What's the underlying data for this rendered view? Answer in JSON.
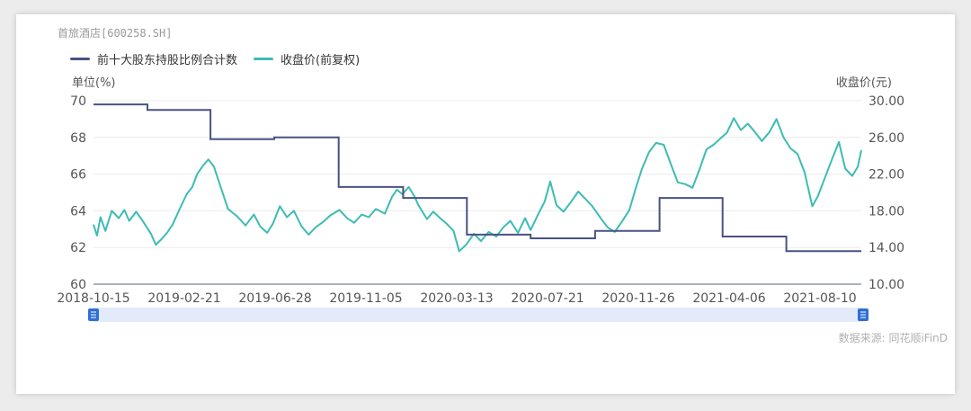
{
  "stock_title": "首旅酒店[600258.SH]",
  "source": "数据来源: 同花顺iFinD",
  "colors": {
    "holding": "#4a5282",
    "price": "#3cbcb3",
    "grid": "#ececec",
    "slider": "#e3ebfa",
    "handle": "#2f6fd6"
  },
  "chart_data": {
    "type": "line",
    "x_tick_labels": [
      "2018-10-15",
      "2019-02-21",
      "2019-06-28",
      "2019-11-05",
      "2020-03-13",
      "2020-07-21",
      "2020-11-26",
      "2021-04-06",
      "2021-08-10"
    ],
    "left_axis": {
      "label": "单位(%)",
      "ticks": [
        "70",
        "68",
        "66",
        "64",
        "62",
        "60"
      ],
      "range": [
        60,
        70
      ]
    },
    "right_axis": {
      "label": "收盘价(元)",
      "ticks": [
        "30.00",
        "26.00",
        "22.00",
        "18.00",
        "14.00",
        "10.00"
      ],
      "range": [
        10,
        30
      ]
    },
    "x_range": [
      "2018-10-15",
      "2021-10-15"
    ],
    "series": [
      {
        "name": "前十大股东持股比例合计数",
        "axis": "left",
        "style": "step",
        "points": [
          [
            "2018-10-15",
            69.8
          ],
          [
            "2018-12-31",
            69.5
          ],
          [
            "2019-03-31",
            67.9
          ],
          [
            "2019-06-30",
            68.0
          ],
          [
            "2019-09-30",
            65.3
          ],
          [
            "2019-12-31",
            64.7
          ],
          [
            "2020-03-31",
            62.7
          ],
          [
            "2020-06-30",
            62.5
          ],
          [
            "2020-09-30",
            62.9
          ],
          [
            "2020-12-31",
            64.7
          ],
          [
            "2021-03-31",
            62.6
          ],
          [
            "2021-06-30",
            61.8
          ],
          [
            "2021-10-15",
            61.8
          ]
        ]
      },
      {
        "name": "收盘价(前复权)",
        "axis": "right",
        "style": "line",
        "points": [
          [
            "2018-10-15",
            16.5
          ],
          [
            "2018-10-20",
            15.3
          ],
          [
            "2018-10-25",
            17.3
          ],
          [
            "2018-11-01",
            15.8
          ],
          [
            "2018-11-10",
            18.0
          ],
          [
            "2018-11-20",
            17.2
          ],
          [
            "2018-11-28",
            18.1
          ],
          [
            "2018-12-05",
            16.9
          ],
          [
            "2018-12-15",
            17.9
          ],
          [
            "2018-12-25",
            16.8
          ],
          [
            "2019-01-05",
            15.5
          ],
          [
            "2019-01-12",
            14.3
          ],
          [
            "2019-01-20",
            14.9
          ],
          [
            "2019-01-28",
            15.6
          ],
          [
            "2019-02-05",
            16.5
          ],
          [
            "2019-02-15",
            18.2
          ],
          [
            "2019-02-25",
            19.8
          ],
          [
            "2019-03-05",
            20.6
          ],
          [
            "2019-03-12",
            22.0
          ],
          [
            "2019-03-20",
            22.9
          ],
          [
            "2019-03-28",
            23.6
          ],
          [
            "2019-04-05",
            22.8
          ],
          [
            "2019-04-15",
            20.5
          ],
          [
            "2019-04-25",
            18.2
          ],
          [
            "2019-05-08",
            17.4
          ],
          [
            "2019-05-20",
            16.4
          ],
          [
            "2019-06-01",
            17.6
          ],
          [
            "2019-06-10",
            16.3
          ],
          [
            "2019-06-20",
            15.6
          ],
          [
            "2019-06-28",
            16.6
          ],
          [
            "2019-07-08",
            18.5
          ],
          [
            "2019-07-18",
            17.3
          ],
          [
            "2019-07-28",
            18.0
          ],
          [
            "2019-08-08",
            16.3
          ],
          [
            "2019-08-18",
            15.4
          ],
          [
            "2019-08-28",
            16.2
          ],
          [
            "2019-09-08",
            16.8
          ],
          [
            "2019-09-18",
            17.5
          ],
          [
            "2019-10-01",
            18.1
          ],
          [
            "2019-10-12",
            17.2
          ],
          [
            "2019-10-22",
            16.7
          ],
          [
            "2019-11-02",
            17.6
          ],
          [
            "2019-11-12",
            17.3
          ],
          [
            "2019-11-22",
            18.2
          ],
          [
            "2019-12-05",
            17.7
          ],
          [
            "2019-12-15",
            19.5
          ],
          [
            "2019-12-22",
            20.3
          ],
          [
            "2019-12-30",
            19.8
          ],
          [
            "2020-01-08",
            20.6
          ],
          [
            "2020-01-16",
            19.6
          ],
          [
            "2020-01-22",
            18.6
          ],
          [
            "2020-02-03",
            17.1
          ],
          [
            "2020-02-12",
            17.9
          ],
          [
            "2020-02-22",
            17.2
          ],
          [
            "2020-03-02",
            16.6
          ],
          [
            "2020-03-12",
            15.8
          ],
          [
            "2020-03-20",
            13.6
          ],
          [
            "2020-03-30",
            14.3
          ],
          [
            "2020-04-10",
            15.5
          ],
          [
            "2020-04-20",
            14.7
          ],
          [
            "2020-05-01",
            15.7
          ],
          [
            "2020-05-12",
            15.2
          ],
          [
            "2020-05-22",
            16.2
          ],
          [
            "2020-06-01",
            16.9
          ],
          [
            "2020-06-12",
            15.6
          ],
          [
            "2020-06-22",
            17.2
          ],
          [
            "2020-06-30",
            15.9
          ],
          [
            "2020-07-10",
            17.5
          ],
          [
            "2020-07-20",
            19.0
          ],
          [
            "2020-07-28",
            21.2
          ],
          [
            "2020-08-06",
            18.6
          ],
          [
            "2020-08-16",
            17.9
          ],
          [
            "2020-08-26",
            18.9
          ],
          [
            "2020-09-06",
            20.1
          ],
          [
            "2020-09-16",
            19.3
          ],
          [
            "2020-09-26",
            18.5
          ],
          [
            "2020-10-08",
            17.2
          ],
          [
            "2020-10-18",
            16.2
          ],
          [
            "2020-10-28",
            15.7
          ],
          [
            "2020-11-08",
            16.9
          ],
          [
            "2020-11-18",
            18.1
          ],
          [
            "2020-11-26",
            20.2
          ],
          [
            "2020-12-06",
            22.6
          ],
          [
            "2020-12-16",
            24.4
          ],
          [
            "2020-12-26",
            25.4
          ],
          [
            "2021-01-06",
            25.2
          ],
          [
            "2021-01-16",
            23.1
          ],
          [
            "2021-01-26",
            21.1
          ],
          [
            "2021-02-06",
            20.9
          ],
          [
            "2021-02-16",
            20.5
          ],
          [
            "2021-02-26",
            22.5
          ],
          [
            "2021-03-08",
            24.7
          ],
          [
            "2021-03-18",
            25.2
          ],
          [
            "2021-03-28",
            25.9
          ],
          [
            "2021-04-06",
            26.5
          ],
          [
            "2021-04-16",
            28.1
          ],
          [
            "2021-04-26",
            26.8
          ],
          [
            "2021-05-06",
            27.5
          ],
          [
            "2021-05-16",
            26.6
          ],
          [
            "2021-05-26",
            25.6
          ],
          [
            "2021-06-06",
            26.6
          ],
          [
            "2021-06-16",
            28.0
          ],
          [
            "2021-06-26",
            26.0
          ],
          [
            "2021-07-06",
            24.8
          ],
          [
            "2021-07-16",
            24.2
          ],
          [
            "2021-07-26",
            22.2
          ],
          [
            "2021-08-06",
            18.5
          ],
          [
            "2021-08-14",
            19.6
          ],
          [
            "2021-08-24",
            21.6
          ],
          [
            "2021-09-03",
            23.6
          ],
          [
            "2021-09-13",
            25.5
          ],
          [
            "2021-09-22",
            22.6
          ],
          [
            "2021-10-02",
            21.8
          ],
          [
            "2021-10-10",
            22.8
          ],
          [
            "2021-10-15",
            24.6
          ]
        ]
      }
    ],
    "grid": true,
    "legend_position": "top-left"
  }
}
